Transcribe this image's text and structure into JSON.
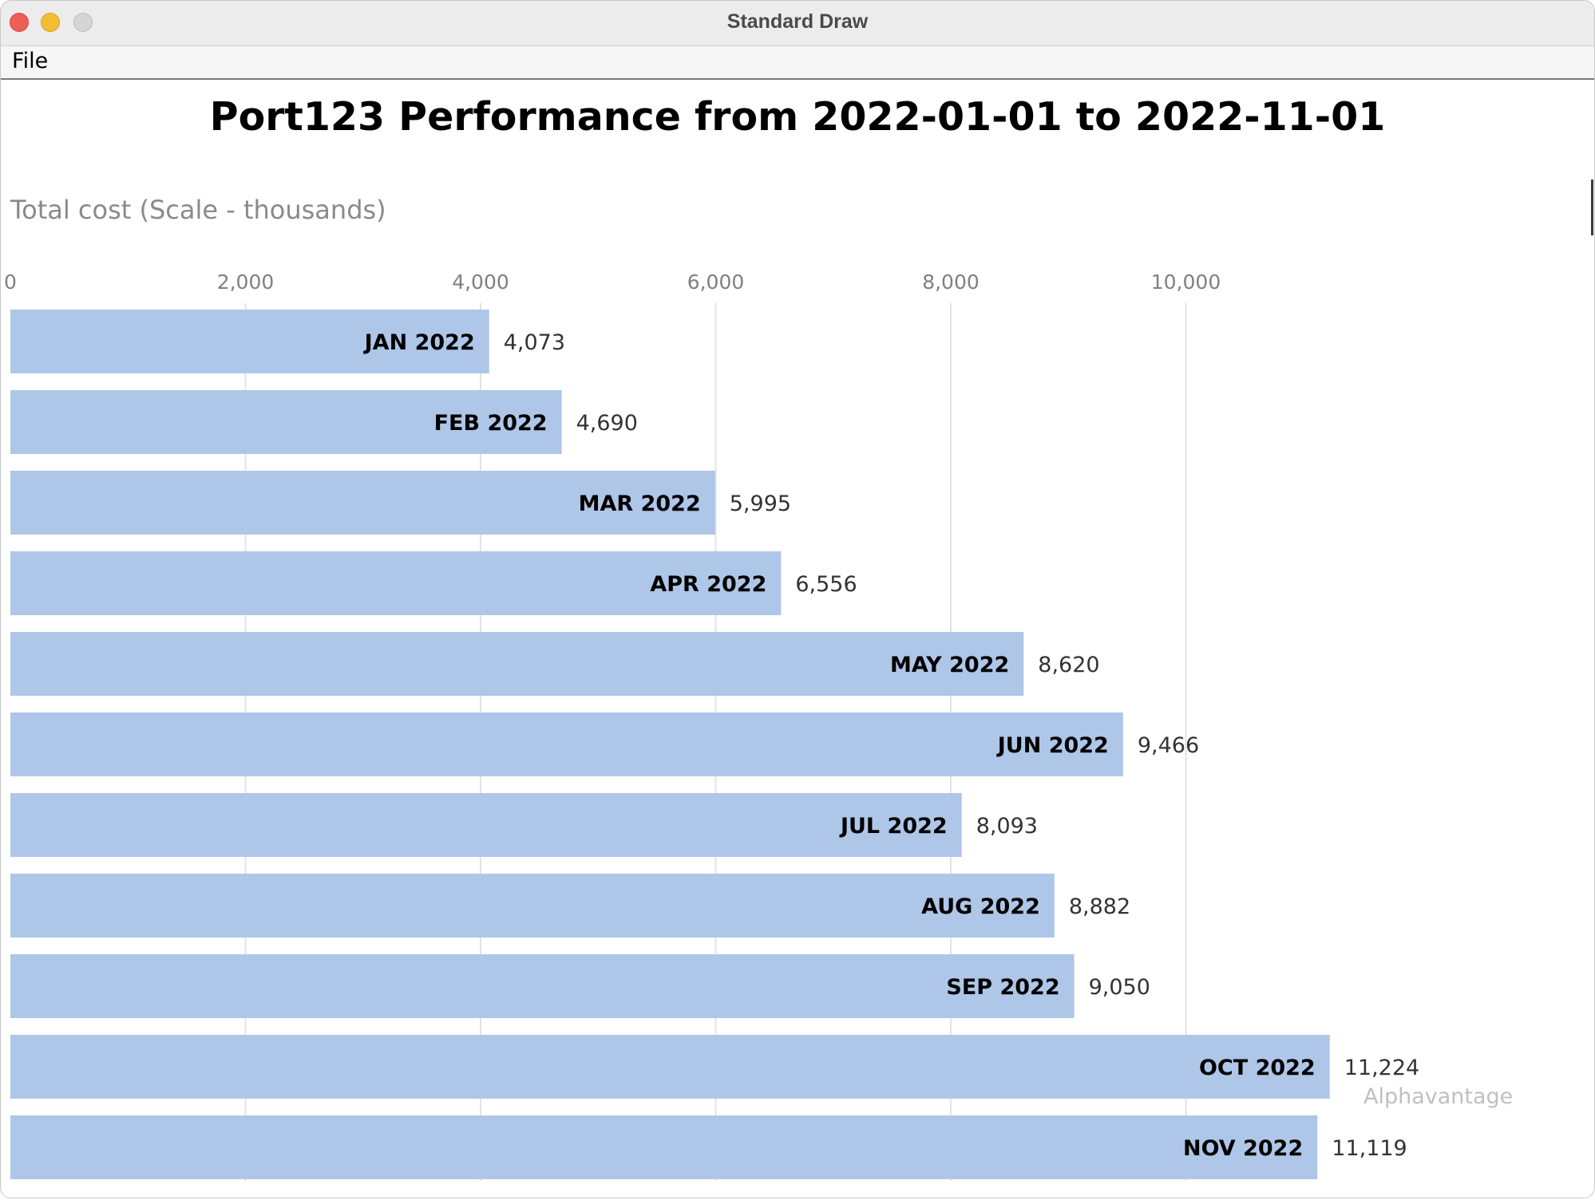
{
  "window": {
    "title": "Standard Draw"
  },
  "menu": {
    "file_label": "File"
  },
  "chart_data": {
    "type": "bar",
    "orientation": "horizontal",
    "title": "Port123 Performance from 2022-01-01 to 2022-11-01",
    "xlabel": "Total cost (Scale - thousands)",
    "ylabel": "",
    "xlim": [
      0,
      11500
    ],
    "x_ticks": [
      0,
      2000,
      4000,
      6000,
      8000,
      10000
    ],
    "x_tick_labels": [
      "0",
      "2,000",
      "4,000",
      "6,000",
      "8,000",
      "10,000"
    ],
    "categories": [
      "JAN 2022",
      "FEB 2022",
      "MAR 2022",
      "APR 2022",
      "MAY 2022",
      "JUN 2022",
      "JUL 2022",
      "AUG 2022",
      "SEP 2022",
      "OCT 2022",
      "NOV 2022"
    ],
    "values": [
      4073,
      4690,
      5995,
      6556,
      8620,
      9466,
      8093,
      8882,
      9050,
      11224,
      11119
    ],
    "value_labels": [
      "4,073",
      "4,690",
      "5,995",
      "6,556",
      "8,620",
      "9,466",
      "8,093",
      "8,882",
      "9,050",
      "11,224",
      "11,119"
    ],
    "source": "Alphavantage",
    "grid": true,
    "bar_color": "#aec6e8"
  }
}
